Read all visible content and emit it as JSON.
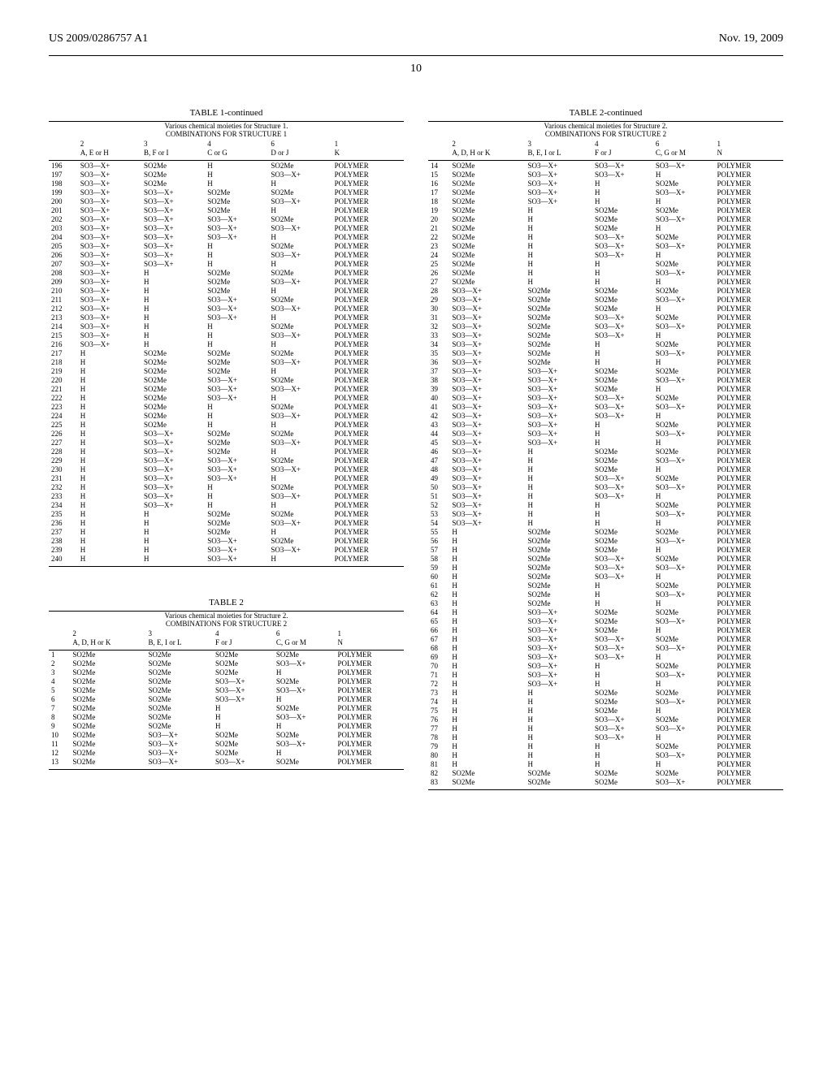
{
  "patent_id": "US 2009/0286757 A1",
  "date": "Nov. 19, 2009",
  "page_number": "10",
  "symbols": {
    "so2me": "SO2Me",
    "so3x": "SO3—X+",
    "h": "H",
    "poly": "POLYMER"
  },
  "table1": {
    "caption": "TABLE 1-continued",
    "sub1": "Various chemical moieties for Structure 1.",
    "sub2": "COMBINATIONS FOR STRUCTURE 1",
    "headers": {
      "c1_top": "",
      "c1_bot": "",
      "c2_top": "2",
      "c2_bot": "A, E or H",
      "c3_top": "3",
      "c3_bot": "B, F or I",
      "c4_top": "4",
      "c4_bot": "C or G",
      "c5_top": "6",
      "c5_bot": "D or J",
      "c6_top": "1",
      "c6_bot": "K"
    },
    "rows": [
      [
        "196",
        "so3x",
        "so2me",
        "h",
        "so2me",
        "poly"
      ],
      [
        "197",
        "so3x",
        "so2me",
        "h",
        "so3x",
        "poly"
      ],
      [
        "198",
        "so3x",
        "so2me",
        "h",
        "h",
        "poly"
      ],
      [
        "199",
        "so3x",
        "so3x",
        "so2me",
        "so2me",
        "poly"
      ],
      [
        "200",
        "so3x",
        "so3x",
        "so2me",
        "so3x",
        "poly"
      ],
      [
        "201",
        "so3x",
        "so3x",
        "so2me",
        "h",
        "poly"
      ],
      [
        "202",
        "so3x",
        "so3x",
        "so3x",
        "so2me",
        "poly"
      ],
      [
        "203",
        "so3x",
        "so3x",
        "so3x",
        "so3x",
        "poly"
      ],
      [
        "204",
        "so3x",
        "so3x",
        "so3x",
        "h",
        "poly"
      ],
      [
        "205",
        "so3x",
        "so3x",
        "h",
        "so2me",
        "poly"
      ],
      [
        "206",
        "so3x",
        "so3x",
        "h",
        "so3x",
        "poly"
      ],
      [
        "207",
        "so3x",
        "so3x",
        "h",
        "h",
        "poly"
      ],
      [
        "208",
        "so3x",
        "h",
        "so2me",
        "so2me",
        "poly"
      ],
      [
        "209",
        "so3x",
        "h",
        "so2me",
        "so3x",
        "poly"
      ],
      [
        "210",
        "so3x",
        "h",
        "so2me",
        "h",
        "poly"
      ],
      [
        "211",
        "so3x",
        "h",
        "so3x",
        "so2me",
        "poly"
      ],
      [
        "212",
        "so3x",
        "h",
        "so3x",
        "so3x",
        "poly"
      ],
      [
        "213",
        "so3x",
        "h",
        "so3x",
        "h",
        "poly"
      ],
      [
        "214",
        "so3x",
        "h",
        "h",
        "so2me",
        "poly"
      ],
      [
        "215",
        "so3x",
        "h",
        "h",
        "so3x",
        "poly"
      ],
      [
        "216",
        "so3x",
        "h",
        "h",
        "h",
        "poly"
      ],
      [
        "217",
        "h",
        "so2me",
        "so2me",
        "so2me",
        "poly"
      ],
      [
        "218",
        "h",
        "so2me",
        "so2me",
        "so3x",
        "poly"
      ],
      [
        "219",
        "h",
        "so2me",
        "so2me",
        "h",
        "poly"
      ],
      [
        "220",
        "h",
        "so2me",
        "so3x",
        "so2me",
        "poly"
      ],
      [
        "221",
        "h",
        "so2me",
        "so3x",
        "so3x",
        "poly"
      ],
      [
        "222",
        "h",
        "so2me",
        "so3x",
        "h",
        "poly"
      ],
      [
        "223",
        "h",
        "so2me",
        "h",
        "so2me",
        "poly"
      ],
      [
        "224",
        "h",
        "so2me",
        "h",
        "so3x",
        "poly"
      ],
      [
        "225",
        "h",
        "so2me",
        "h",
        "h",
        "poly"
      ],
      [
        "226",
        "h",
        "so3x",
        "so2me",
        "so2me",
        "poly"
      ],
      [
        "227",
        "h",
        "so3x",
        "so2me",
        "so3x",
        "poly"
      ],
      [
        "228",
        "h",
        "so3x",
        "so2me",
        "h",
        "poly"
      ],
      [
        "229",
        "h",
        "so3x",
        "so3x",
        "so2me",
        "poly"
      ],
      [
        "230",
        "h",
        "so3x",
        "so3x",
        "so3x",
        "poly"
      ],
      [
        "231",
        "h",
        "so3x",
        "so3x",
        "h",
        "poly"
      ],
      [
        "232",
        "h",
        "so3x",
        "h",
        "so2me",
        "poly"
      ],
      [
        "233",
        "h",
        "so3x",
        "h",
        "so3x",
        "poly"
      ],
      [
        "234",
        "h",
        "so3x",
        "h",
        "h",
        "poly"
      ],
      [
        "235",
        "h",
        "h",
        "so2me",
        "so2me",
        "poly"
      ],
      [
        "236",
        "h",
        "h",
        "so2me",
        "so3x",
        "poly"
      ],
      [
        "237",
        "h",
        "h",
        "so2me",
        "h",
        "poly"
      ],
      [
        "238",
        "h",
        "h",
        "so3x",
        "so2me",
        "poly"
      ],
      [
        "239",
        "h",
        "h",
        "so3x",
        "so3x",
        "poly"
      ],
      [
        "240",
        "h",
        "h",
        "so3x",
        "h",
        "poly"
      ]
    ]
  },
  "table2a": {
    "caption": "TABLE 2",
    "sub1": "Various chemical moieties for Structure 2.",
    "sub2": "COMBINATIONS FOR STRUCTURE 2",
    "headers": {
      "c1_top": "",
      "c1_bot": "",
      "c2_top": "2",
      "c2_bot": "A, D, H or K",
      "c3_top": "3",
      "c3_bot": "B, E, I or L",
      "c4_top": "4",
      "c4_bot": "F or J",
      "c5_top": "6",
      "c5_bot": "C, G or M",
      "c6_top": "1",
      "c6_bot": "N"
    },
    "rows": [
      [
        "1",
        "so2me",
        "so2me",
        "so2me",
        "so2me",
        "poly"
      ],
      [
        "2",
        "so2me",
        "so2me",
        "so2me",
        "so3x",
        "poly"
      ],
      [
        "3",
        "so2me",
        "so2me",
        "so2me",
        "h",
        "poly"
      ],
      [
        "4",
        "so2me",
        "so2me",
        "so3x",
        "so2me",
        "poly"
      ],
      [
        "5",
        "so2me",
        "so2me",
        "so3x",
        "so3x",
        "poly"
      ],
      [
        "6",
        "so2me",
        "so2me",
        "so3x",
        "h",
        "poly"
      ],
      [
        "7",
        "so2me",
        "so2me",
        "h",
        "so2me",
        "poly"
      ],
      [
        "8",
        "so2me",
        "so2me",
        "h",
        "so3x",
        "poly"
      ],
      [
        "9",
        "so2me",
        "so2me",
        "h",
        "h",
        "poly"
      ],
      [
        "10",
        "so2me",
        "so3x",
        "so2me",
        "so2me",
        "poly"
      ],
      [
        "11",
        "so2me",
        "so3x",
        "so2me",
        "so3x",
        "poly"
      ],
      [
        "12",
        "so2me",
        "so3x",
        "so2me",
        "h",
        "poly"
      ],
      [
        "13",
        "so2me",
        "so3x",
        "so3x",
        "so2me",
        "poly"
      ]
    ]
  },
  "table2b": {
    "caption": "TABLE 2-continued",
    "sub1": "Various chemical moieties for Structure 2.",
    "sub2": "COMBINATIONS FOR STRUCTURE 2",
    "headers": {
      "c1_top": "",
      "c1_bot": "",
      "c2_top": "2",
      "c2_bot": "A, D, H or K",
      "c3_top": "3",
      "c3_bot": "B, E, I or L",
      "c4_top": "4",
      "c4_bot": "F or J",
      "c5_top": "6",
      "c5_bot": "C, G or M",
      "c6_top": "1",
      "c6_bot": "N"
    },
    "rows": [
      [
        "14",
        "so2me",
        "so3x",
        "so3x",
        "so3x",
        "poly"
      ],
      [
        "15",
        "so2me",
        "so3x",
        "so3x",
        "h",
        "poly"
      ],
      [
        "16",
        "so2me",
        "so3x",
        "h",
        "so2me",
        "poly"
      ],
      [
        "17",
        "so2me",
        "so3x",
        "h",
        "so3x",
        "poly"
      ],
      [
        "18",
        "so2me",
        "so3x",
        "h",
        "h",
        "poly"
      ],
      [
        "19",
        "so2me",
        "h",
        "so2me",
        "so2me",
        "poly"
      ],
      [
        "20",
        "so2me",
        "h",
        "so2me",
        "so3x",
        "poly"
      ],
      [
        "21",
        "so2me",
        "h",
        "so2me",
        "h",
        "poly"
      ],
      [
        "22",
        "so2me",
        "h",
        "so3x",
        "so2me",
        "poly"
      ],
      [
        "23",
        "so2me",
        "h",
        "so3x",
        "so3x",
        "poly"
      ],
      [
        "24",
        "so2me",
        "h",
        "so3x",
        "h",
        "poly"
      ],
      [
        "25",
        "so2me",
        "h",
        "h",
        "so2me",
        "poly"
      ],
      [
        "26",
        "so2me",
        "h",
        "h",
        "so3x",
        "poly"
      ],
      [
        "27",
        "so2me",
        "h",
        "h",
        "h",
        "poly"
      ],
      [
        "28",
        "so3x",
        "so2me",
        "so2me",
        "so2me",
        "poly"
      ],
      [
        "29",
        "so3x",
        "so2me",
        "so2me",
        "so3x",
        "poly"
      ],
      [
        "30",
        "so3x",
        "so2me",
        "so2me",
        "h",
        "poly"
      ],
      [
        "31",
        "so3x",
        "so2me",
        "so3x",
        "so2me",
        "poly"
      ],
      [
        "32",
        "so3x",
        "so2me",
        "so3x",
        "so3x",
        "poly"
      ],
      [
        "33",
        "so3x",
        "so2me",
        "so3x",
        "h",
        "poly"
      ],
      [
        "34",
        "so3x",
        "so2me",
        "h",
        "so2me",
        "poly"
      ],
      [
        "35",
        "so3x",
        "so2me",
        "h",
        "so3x",
        "poly"
      ],
      [
        "36",
        "so3x",
        "so2me",
        "h",
        "h",
        "poly"
      ],
      [
        "37",
        "so3x",
        "so3x",
        "so2me",
        "so2me",
        "poly"
      ],
      [
        "38",
        "so3x",
        "so3x",
        "so2me",
        "so3x",
        "poly"
      ],
      [
        "39",
        "so3x",
        "so3x",
        "so2me",
        "h",
        "poly"
      ],
      [
        "40",
        "so3x",
        "so3x",
        "so3x",
        "so2me",
        "poly"
      ],
      [
        "41",
        "so3x",
        "so3x",
        "so3x",
        "so3x",
        "poly"
      ],
      [
        "42",
        "so3x",
        "so3x",
        "so3x",
        "h",
        "poly"
      ],
      [
        "43",
        "so3x",
        "so3x",
        "h",
        "so2me",
        "poly"
      ],
      [
        "44",
        "so3x",
        "so3x",
        "h",
        "so3x",
        "poly"
      ],
      [
        "45",
        "so3x",
        "so3x",
        "h",
        "h",
        "poly"
      ],
      [
        "46",
        "so3x",
        "h",
        "so2me",
        "so2me",
        "poly"
      ],
      [
        "47",
        "so3x",
        "h",
        "so2me",
        "so3x",
        "poly"
      ],
      [
        "48",
        "so3x",
        "h",
        "so2me",
        "h",
        "poly"
      ],
      [
        "49",
        "so3x",
        "h",
        "so3x",
        "so2me",
        "poly"
      ],
      [
        "50",
        "so3x",
        "h",
        "so3x",
        "so3x",
        "poly"
      ],
      [
        "51",
        "so3x",
        "h",
        "so3x",
        "h",
        "poly"
      ],
      [
        "52",
        "so3x",
        "h",
        "h",
        "so2me",
        "poly"
      ],
      [
        "53",
        "so3x",
        "h",
        "h",
        "so3x",
        "poly"
      ],
      [
        "54",
        "so3x",
        "h",
        "h",
        "h",
        "poly"
      ],
      [
        "55",
        "h",
        "so2me",
        "so2me",
        "so2me",
        "poly"
      ],
      [
        "56",
        "h",
        "so2me",
        "so2me",
        "so3x",
        "poly"
      ],
      [
        "57",
        "h",
        "so2me",
        "so2me",
        "h",
        "poly"
      ],
      [
        "58",
        "h",
        "so2me",
        "so3x",
        "so2me",
        "poly"
      ],
      [
        "59",
        "h",
        "so2me",
        "so3x",
        "so3x",
        "poly"
      ],
      [
        "60",
        "h",
        "so2me",
        "so3x",
        "h",
        "poly"
      ],
      [
        "61",
        "h",
        "so2me",
        "h",
        "so2me",
        "poly"
      ],
      [
        "62",
        "h",
        "so2me",
        "h",
        "so3x",
        "poly"
      ],
      [
        "63",
        "h",
        "so2me",
        "h",
        "h",
        "poly"
      ],
      [
        "64",
        "h",
        "so3x",
        "so2me",
        "so2me",
        "poly"
      ],
      [
        "65",
        "h",
        "so3x",
        "so2me",
        "so3x",
        "poly"
      ],
      [
        "66",
        "h",
        "so3x",
        "so2me",
        "h",
        "poly"
      ],
      [
        "67",
        "h",
        "so3x",
        "so3x",
        "so2me",
        "poly"
      ],
      [
        "68",
        "h",
        "so3x",
        "so3x",
        "so3x",
        "poly"
      ],
      [
        "69",
        "h",
        "so3x",
        "so3x",
        "h",
        "poly"
      ],
      [
        "70",
        "h",
        "so3x",
        "h",
        "so2me",
        "poly"
      ],
      [
        "71",
        "h",
        "so3x",
        "h",
        "so3x",
        "poly"
      ],
      [
        "72",
        "h",
        "so3x",
        "h",
        "h",
        "poly"
      ],
      [
        "73",
        "h",
        "h",
        "so2me",
        "so2me",
        "poly"
      ],
      [
        "74",
        "h",
        "h",
        "so2me",
        "so3x",
        "poly"
      ],
      [
        "75",
        "h",
        "h",
        "so2me",
        "h",
        "poly"
      ],
      [
        "76",
        "h",
        "h",
        "so3x",
        "so2me",
        "poly"
      ],
      [
        "77",
        "h",
        "h",
        "so3x",
        "so3x",
        "poly"
      ],
      [
        "78",
        "h",
        "h",
        "so3x",
        "h",
        "poly"
      ],
      [
        "79",
        "h",
        "h",
        "h",
        "so2me",
        "poly"
      ],
      [
        "80",
        "h",
        "h",
        "h",
        "so3x",
        "poly"
      ],
      [
        "81",
        "h",
        "h",
        "h",
        "h",
        "poly"
      ],
      [
        "82",
        "so2me",
        "so2me",
        "so2me",
        "so2me",
        "poly"
      ],
      [
        "83",
        "so2me",
        "so2me",
        "so2me",
        "so3x",
        "poly"
      ]
    ]
  }
}
